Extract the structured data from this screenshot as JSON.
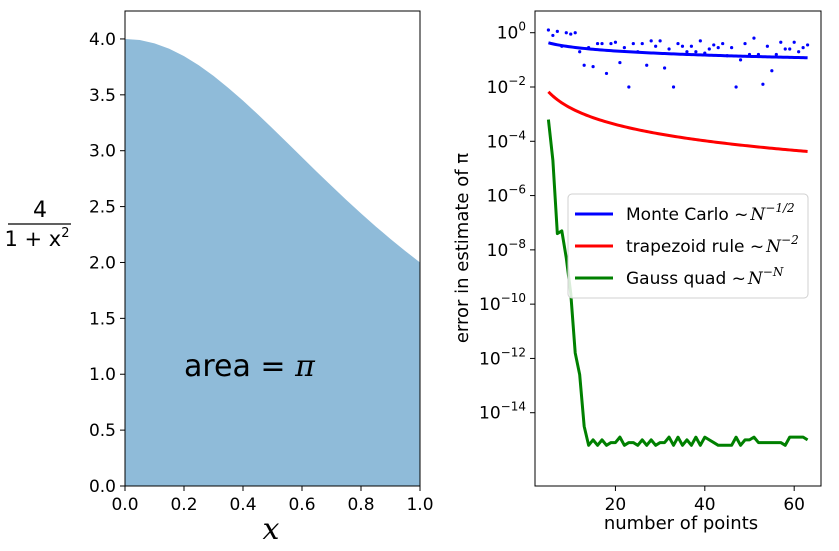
{
  "chart_data": [
    {
      "type": "area",
      "function": "4/(1+x^2)",
      "x": [
        0,
        0.05,
        0.1,
        0.15,
        0.2,
        0.25,
        0.3,
        0.35,
        0.4,
        0.45,
        0.5,
        0.55,
        0.6,
        0.65,
        0.7,
        0.75,
        0.8,
        0.85,
        0.9,
        0.95,
        1.0
      ],
      "y": [
        4.0,
        3.99,
        3.96,
        3.912,
        3.846,
        3.765,
        3.67,
        3.562,
        3.448,
        3.326,
        3.2,
        3.071,
        2.941,
        2.812,
        2.685,
        2.56,
        2.439,
        2.322,
        2.21,
        2.103,
        2.0
      ],
      "fill_color": "#8fbbd9",
      "xlim": [
        0,
        1.0
      ],
      "ylim": [
        0,
        4.25
      ],
      "xticks": [
        "0.0",
        "0.2",
        "0.4",
        "0.6",
        "0.8",
        "1.0"
      ],
      "yticks": [
        "0.0",
        "0.5",
        "1.0",
        "1.5",
        "2.0",
        "2.5",
        "3.0",
        "3.5",
        "4.0"
      ],
      "xlabel": "x",
      "ylabel": {
        "numerator": "4",
        "denominator_base": "1 + x",
        "denominator_exp": "2"
      },
      "annotation": {
        "text": "area = ",
        "symbol": "π",
        "x": 0.2,
        "y": 1.0
      }
    },
    {
      "type": "line",
      "yscale": "log",
      "xlim": [
        2,
        66
      ],
      "ylim_exp": [
        -16.7,
        0.8
      ],
      "xticks": [
        "20",
        "40",
        "60"
      ],
      "ytick_exponents": [
        0,
        -2,
        -4,
        -6,
        -8,
        -10,
        -12,
        -14
      ],
      "ytick_base": "10",
      "xlabel": "number of points",
      "ylabel": "error in estimate of π",
      "legend_position": "center-right",
      "series": [
        {
          "name": "Monte Carlo",
          "scaling": {
            "prefix": "~",
            "base": "N",
            "exp": "−1/2"
          },
          "color": "#0000ff",
          "model": "0.95 * N^-0.5",
          "x_range": [
            5,
            63
          ]
        },
        {
          "name": "trapezoid rule",
          "scaling": {
            "prefix": "~",
            "base": "N",
            "exp": "−2"
          },
          "color": "#ff0000",
          "model": "0.167 * N^-2",
          "x_range": [
            5,
            63
          ]
        },
        {
          "name": "Gauss quad",
          "scaling": {
            "prefix": "~",
            "base": "N",
            "exp": "−N"
          },
          "color": "#008000",
          "x": [
            5,
            6,
            7,
            8,
            9,
            10,
            11,
            12,
            13,
            14,
            15,
            16,
            17,
            18,
            19,
            20,
            21,
            22,
            23,
            24,
            25,
            26,
            27,
            28,
            29,
            30,
            31,
            32,
            33,
            34,
            35,
            36,
            37,
            38,
            39,
            40,
            41,
            42,
            43,
            44,
            45,
            46,
            47,
            48,
            49,
            50,
            51,
            52,
            53,
            54,
            55,
            56,
            57,
            58,
            59,
            60,
            61,
            62,
            63
          ],
          "log10_y": [
            -3.2,
            -4.7,
            -7.4,
            -7.3,
            -8.3,
            -9.6,
            -11.8,
            -12.6,
            -14.5,
            -15.2,
            -15.0,
            -15.2,
            -15.0,
            -15.2,
            -15.1,
            -15.1,
            -14.9,
            -15.2,
            -15.1,
            -15.1,
            -15.2,
            -15.0,
            -15.2,
            -15.0,
            -15.2,
            -15.1,
            -15.1,
            -14.9,
            -15.2,
            -14.9,
            -15.2,
            -15.0,
            -15.2,
            -14.9,
            -15.2,
            -14.9,
            -15.0,
            -15.1,
            -15.2,
            -15.2,
            -15.2,
            -15.2,
            -14.9,
            -15.2,
            -15.0,
            -15.0,
            -14.9,
            -15.1,
            -15.1,
            -15.1,
            -15.1,
            -15.1,
            -15.1,
            -15.2,
            -14.9,
            -14.9,
            -14.9,
            -14.9,
            -15.0
          ]
        },
        {
          "name": "",
          "style": "points",
          "color": "#0000ff",
          "x": [
            5,
            6,
            7,
            8,
            9,
            10,
            11,
            12,
            13,
            14,
            15,
            16,
            17,
            18,
            19,
            20,
            21,
            22,
            23,
            24,
            25,
            26,
            27,
            28,
            29,
            30,
            31,
            32,
            33,
            34,
            35,
            36,
            37,
            38,
            39,
            40,
            41,
            42,
            43,
            44,
            45,
            46,
            47,
            48,
            49,
            50,
            51,
            52,
            53,
            54,
            55,
            56,
            57,
            58,
            59,
            60,
            61,
            62,
            63
          ],
          "log10_y": [
            0.1,
            -0.1,
            0.05,
            -0.5,
            0.0,
            -0.05,
            0.0,
            -0.7,
            -1.2,
            -0.55,
            -1.25,
            -0.4,
            -0.4,
            -1.5,
            -0.4,
            -0.35,
            -1.1,
            -0.55,
            -2.0,
            -0.4,
            -0.7,
            -0.4,
            -1.2,
            -0.3,
            -0.5,
            -0.3,
            -1.3,
            -0.6,
            -2.0,
            -0.4,
            -0.5,
            -0.7,
            -0.5,
            -0.7,
            -0.3,
            -0.75,
            -0.6,
            -0.45,
            -0.55,
            -0.4,
            -0.85,
            -0.55,
            -2.0,
            -1.0,
            -0.4,
            -0.8,
            -0.2,
            -0.8,
            -1.9,
            -0.5,
            -1.4,
            -0.8,
            -0.35,
            -0.6,
            -0.6,
            -0.35,
            -0.7,
            -0.55,
            -0.45
          ]
        }
      ]
    }
  ]
}
